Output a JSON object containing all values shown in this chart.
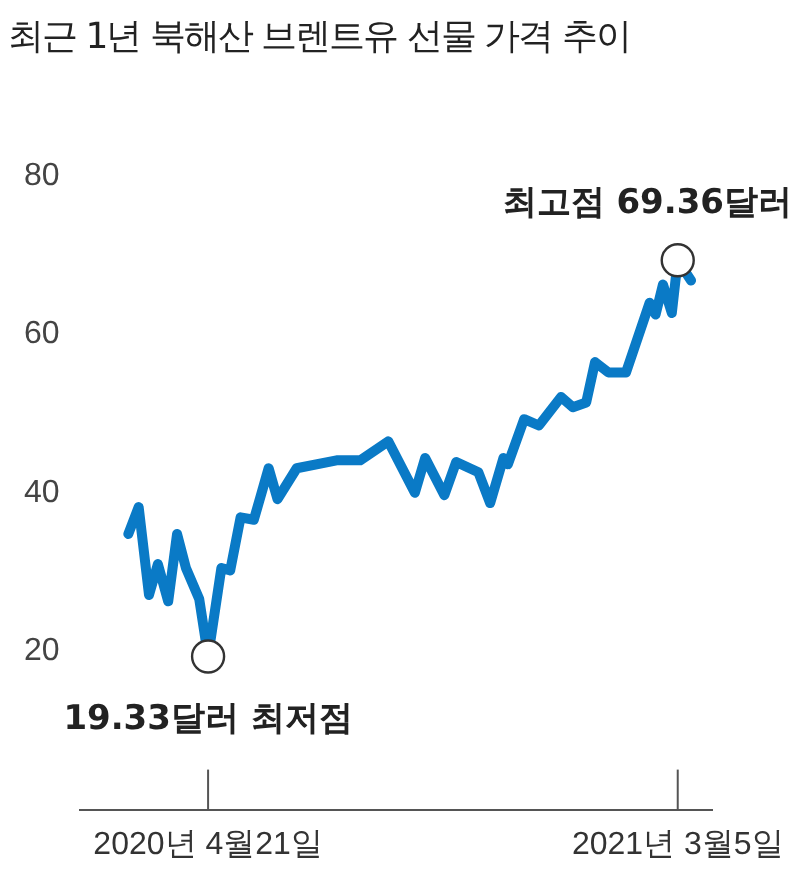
{
  "chart_data": {
    "type": "line",
    "title": "최근 1년 북해산 브렌트유 선물 가격 추이",
    "x": [
      "2020-02-27",
      "2020-03-05",
      "2020-03-12",
      "2020-03-18",
      "2020-03-25",
      "2020-03-31",
      "2020-04-06",
      "2020-04-15",
      "2020-04-21",
      "2020-04-30",
      "2020-05-06",
      "2020-05-13",
      "2020-05-22",
      "2020-06-01",
      "2020-06-07",
      "2020-06-20",
      "2020-07-17",
      "2020-08-02",
      "2020-08-21",
      "2020-09-08",
      "2020-09-15",
      "2020-09-28",
      "2020-10-06",
      "2020-10-21",
      "2020-10-29",
      "2020-11-07",
      "2020-11-10",
      "2020-11-21",
      "2020-12-01",
      "2020-12-16",
      "2020-12-24",
      "2021-01-02",
      "2021-01-08",
      "2021-01-17",
      "2021-01-29",
      "2021-02-14",
      "2021-02-18",
      "2021-02-23",
      "2021-03-01",
      "2021-03-05",
      "2021-03-14"
    ],
    "series": [
      {
        "color": "#0a7ac6",
        "values": [
          34.8,
          38.2,
          27.1,
          31.0,
          26.3,
          34.8,
          30.5,
          26.6,
          19.33,
          30.5,
          30.2,
          36.9,
          36.6,
          43.1,
          39.2,
          43.1,
          44.1,
          44.1,
          46.5,
          40.0,
          44.4,
          39.7,
          43.9,
          42.6,
          38.7,
          44.4,
          43.6,
          49.3,
          48.5,
          52.1,
          50.8,
          51.4,
          56.5,
          55.2,
          55.2,
          64.0,
          62.5,
          66.3,
          62.7,
          69.36,
          66.8
        ]
      }
    ],
    "xlim": [
      "2020-01-25",
      "2021-03-28"
    ],
    "xticks": [
      {
        "value": "2020-04-21",
        "label": "2020년 4월21일"
      },
      {
        "value": "2021-03-05",
        "label": "2021년 3월5일"
      }
    ],
    "ylim": [
      0,
      80
    ],
    "yticks": [
      20,
      40,
      60,
      80
    ],
    "grid": false,
    "legend": false,
    "marker": "none",
    "line_style": "solid",
    "annotations": [
      {
        "text": "최고점 69.36달러",
        "x": "2021-03-05",
        "y": 69.36
      },
      {
        "text": "19.33달러 최저점",
        "x": "2020-04-21",
        "y": 19.33
      }
    ]
  }
}
